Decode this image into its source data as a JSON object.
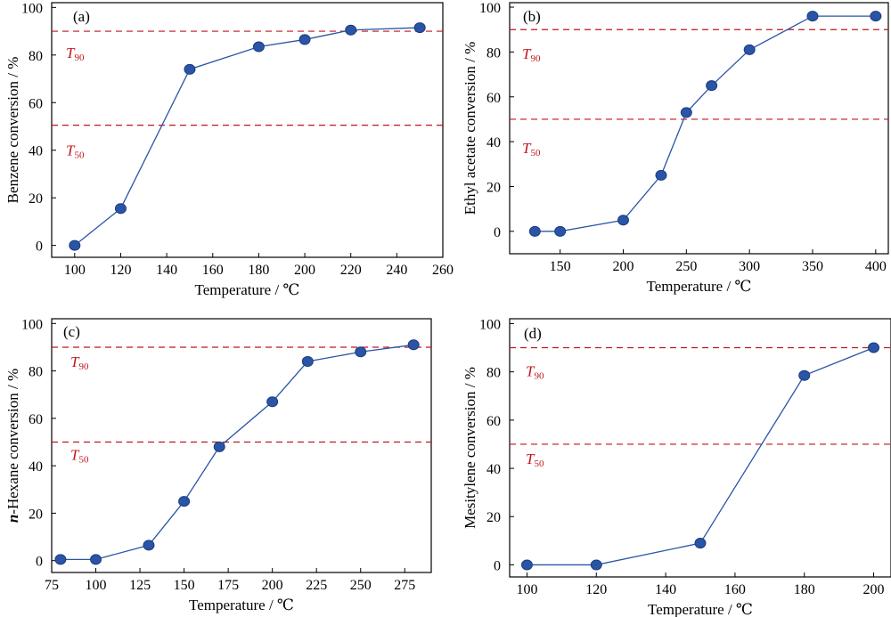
{
  "chart_data": [
    {
      "type": "line",
      "panel_label": "(a)",
      "xlabel": "Temperature / ℃",
      "ylabel": "Benzene conversion / %",
      "xlim": [
        90,
        260
      ],
      "ylim": [
        -5,
        102
      ],
      "xticks": [
        100,
        120,
        140,
        160,
        180,
        200,
        220,
        240,
        260
      ],
      "yticks": [
        0,
        20,
        40,
        60,
        80,
        100
      ],
      "x": [
        100,
        120,
        150,
        180,
        200,
        220,
        250
      ],
      "y": [
        0,
        15.5,
        74,
        83.5,
        86.5,
        90.5,
        91.5
      ],
      "reference_lines": [
        {
          "label": "T",
          "sub": "90",
          "value": 90
        },
        {
          "label": "T",
          "sub": "50",
          "value": 50.5
        }
      ]
    },
    {
      "type": "line",
      "panel_label": "(b)",
      "xlabel": "Temperature / ℃",
      "ylabel": "Ethyl acetate conversion / %",
      "xlim": [
        110,
        410
      ],
      "ylim": [
        -10,
        102
      ],
      "xticks": [
        150,
        200,
        250,
        300,
        350,
        400
      ],
      "yticks": [
        0,
        20,
        40,
        60,
        80,
        100
      ],
      "x": [
        130,
        150,
        200,
        230,
        250,
        270,
        300,
        350,
        400
      ],
      "y": [
        0,
        0,
        5,
        25,
        53,
        65,
        81,
        96,
        96
      ],
      "reference_lines": [
        {
          "label": "T",
          "sub": "90",
          "value": 90
        },
        {
          "label": "T",
          "sub": "50",
          "value": 50
        }
      ]
    },
    {
      "type": "line",
      "panel_label": "(c)",
      "xlabel": "Temperature / ℃",
      "ylabel": "n-Hexane conversion / %",
      "xlim": [
        75,
        290
      ],
      "ylim": [
        -5,
        102
      ],
      "xticks": [
        75,
        100,
        125,
        150,
        175,
        200,
        225,
        250,
        275
      ],
      "yticks": [
        0,
        20,
        40,
        60,
        80,
        100
      ],
      "x": [
        80,
        100,
        130,
        150,
        170,
        200,
        220,
        250,
        280
      ],
      "y": [
        0.5,
        0.5,
        6.5,
        25,
        48,
        67,
        84,
        88,
        91
      ],
      "reference_lines": [
        {
          "label": "T",
          "sub": "90",
          "value": 90
        },
        {
          "label": "T",
          "sub": "50",
          "value": 50
        }
      ]
    },
    {
      "type": "line",
      "panel_label": "(d)",
      "xlabel": "Temperature / ℃",
      "ylabel": "Mesitylene conversion / %",
      "xlim": [
        95,
        205
      ],
      "ylim": [
        -5,
        102
      ],
      "xticks": [
        100,
        120,
        140,
        160,
        180,
        200
      ],
      "yticks": [
        0,
        20,
        40,
        60,
        80,
        100
      ],
      "x": [
        100,
        120,
        150,
        180,
        200
      ],
      "y": [
        0,
        0,
        9,
        78.5,
        90
      ],
      "reference_lines": [
        {
          "label": "T",
          "sub": "90",
          "value": 90
        },
        {
          "label": "T",
          "sub": "50",
          "value": 50
        }
      ]
    }
  ],
  "colors": {
    "marker": "#2a55a6",
    "marker_stroke": "#1a3b80",
    "line": "#2a55a6",
    "reference": "#c0141c",
    "axis": "#000000"
  }
}
